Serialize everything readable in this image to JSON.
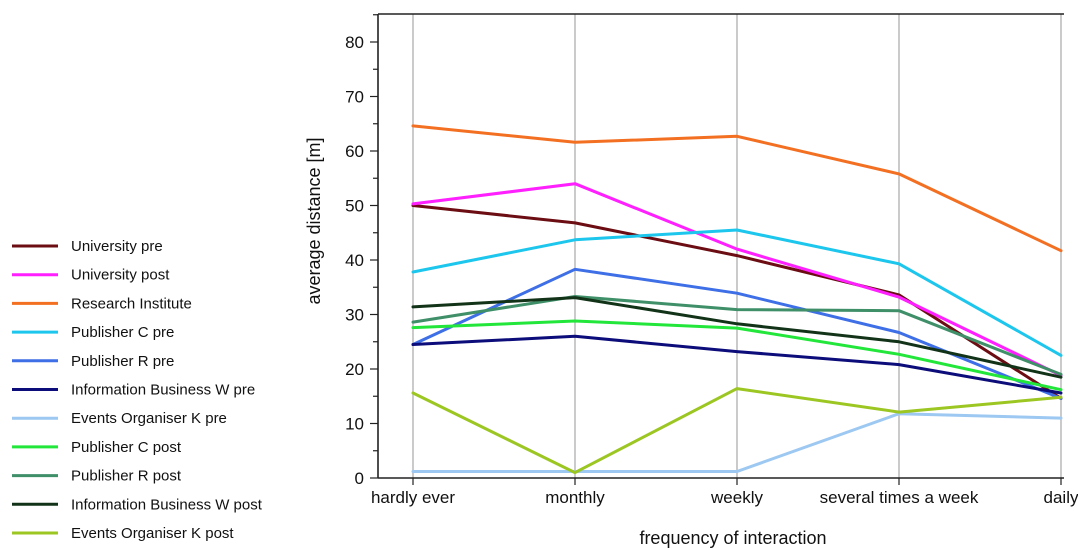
{
  "chart_data": {
    "type": "line",
    "xlabel": "frequency of interaction",
    "ylabel": "average distance [m]",
    "categories": [
      "hardly ever",
      "monthly",
      "weekly",
      "several times a week",
      "daily"
    ],
    "ylim": [
      0,
      85
    ],
    "yticks": [
      0,
      10,
      20,
      30,
      40,
      50,
      60,
      70,
      80
    ],
    "grid": "vertical",
    "legend_position": "left",
    "series": [
      {
        "name": "University pre",
        "color": "#6b0d12",
        "values": [
          50,
          46.8,
          40.8,
          33.6,
          14.6
        ]
      },
      {
        "name": "University post",
        "color": "#ff1fff",
        "values": [
          50.3,
          54,
          42,
          33.2,
          18.8
        ]
      },
      {
        "name": "Research Institute",
        "color": "#f36f21",
        "values": [
          64.6,
          61.6,
          62.7,
          55.8,
          41.7
        ]
      },
      {
        "name": "Publisher C pre",
        "color": "#1cc6ec",
        "values": [
          37.8,
          43.7,
          45.5,
          39.3,
          22.5
        ]
      },
      {
        "name": "Publisher R pre",
        "color": "#3e6fe6",
        "values": [
          24.5,
          38.3,
          33.9,
          26.7,
          14.6
        ]
      },
      {
        "name": "Information Business W pre",
        "color": "#0c0c7a",
        "values": [
          24.5,
          26,
          23.2,
          20.8,
          15.6
        ]
      },
      {
        "name": "Events Organiser K pre",
        "color": "#9cc8f2",
        "values": [
          1.2,
          1.2,
          1.2,
          11.8,
          11
        ]
      },
      {
        "name": "Publisher C post",
        "color": "#22e63a",
        "values": [
          27.6,
          28.8,
          27.5,
          22.7,
          16.2
        ]
      },
      {
        "name": "Publisher R post",
        "color": "#3f8f69",
        "values": [
          28.6,
          33.3,
          30.9,
          30.7,
          19
        ]
      },
      {
        "name": "Information Business W post",
        "color": "#123318",
        "values": [
          31.4,
          33.1,
          28.3,
          25,
          18.5
        ]
      },
      {
        "name": "Events Organiser K post",
        "color": "#9cc622",
        "values": [
          15.6,
          1,
          16.4,
          12.1,
          14.8
        ]
      }
    ]
  }
}
